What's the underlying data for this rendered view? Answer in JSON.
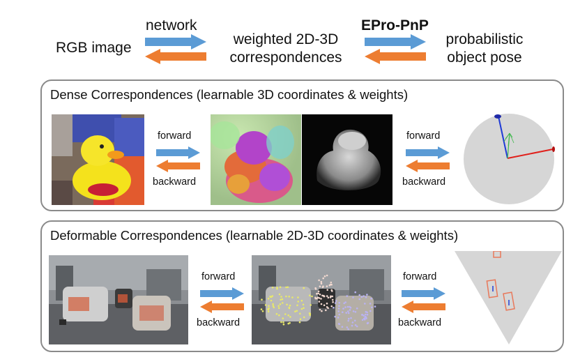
{
  "header": {
    "left_node": "RGB image",
    "arrow1_label": "network",
    "middle_node_line1": "weighted 2D-3D",
    "middle_node_line2": "correspondences",
    "arrow2_label": "EPro-PnP",
    "right_node_line1": "probabilistic",
    "right_node_line2": "object pose"
  },
  "panels": [
    {
      "title": "Dense Correspondences (learnable 3D coordinates & weights)",
      "forward_label_1": "forward",
      "backward_label_1": "backward",
      "forward_label_2": "forward",
      "backward_label_2": "backward"
    },
    {
      "title": "Deformable Correspondences (learnable 2D-3D coordinates & weights)",
      "forward_label_1": "forward",
      "backward_label_1": "backward",
      "forward_label_2": "forward",
      "backward_label_2": "backward"
    }
  ],
  "colors": {
    "forward_arrow": "#5b9bd5",
    "backward_arrow": "#ed7d31",
    "panel_border": "#8a8a8a",
    "pose_x_axis": "#e0201b",
    "pose_y_axis": "#1f3bd6",
    "pose_z_axis": "#3cb84a",
    "bbox_color": "#e8785a"
  },
  "icons": {
    "forward": "arrow-right-icon",
    "backward": "arrow-left-icon"
  }
}
